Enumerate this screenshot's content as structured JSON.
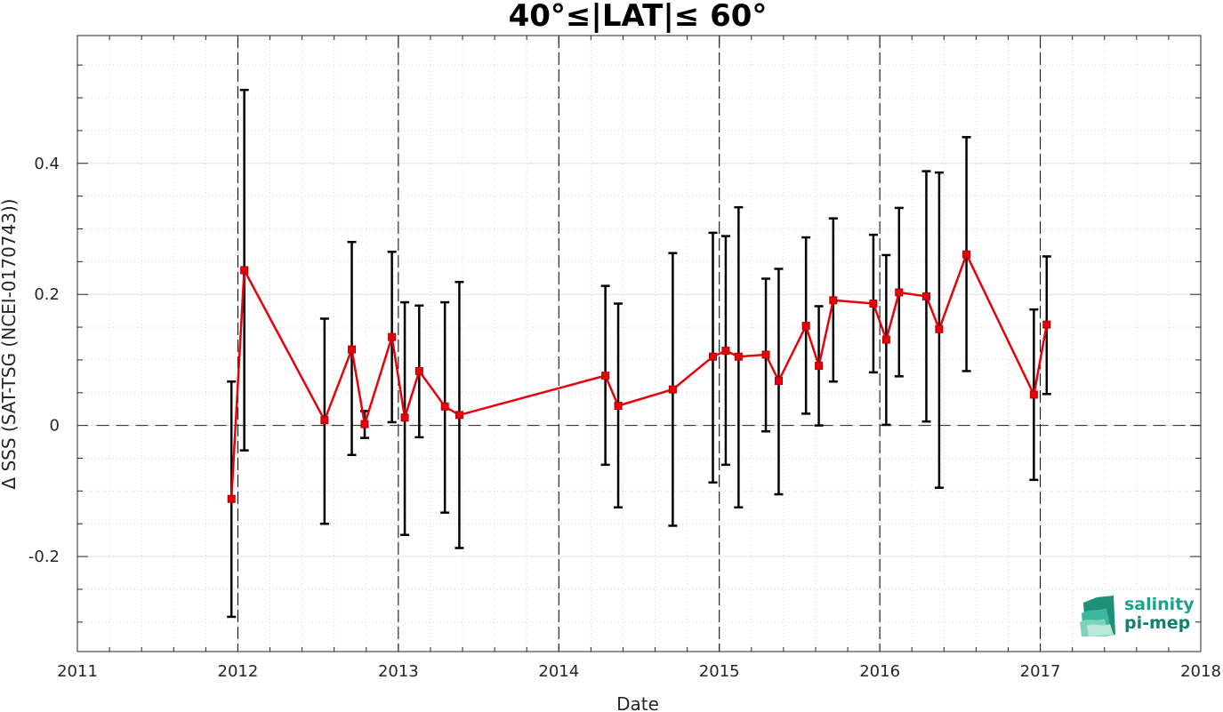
{
  "chart_data": {
    "type": "line",
    "title": "40°≤|LAT|≤ 60°",
    "xlabel": "Date",
    "ylabel": "Δ SSS (SAT-TSG (NCEI-0170743))",
    "xlim": [
      2011,
      2018
    ],
    "ylim": [
      -0.345,
      0.595
    ],
    "xticks": [
      2011,
      2012,
      2013,
      2014,
      2015,
      2016,
      2017,
      2018
    ],
    "yticks": [
      -0.2,
      0,
      0.2,
      0.4
    ],
    "ytick_labels": [
      "-0.2",
      "0",
      "0.2",
      "0.4"
    ],
    "grid": true,
    "year_lines": [
      2012,
      2013,
      2014,
      2015,
      2016,
      2017
    ],
    "zero_line": 0,
    "series": [
      {
        "color": "#e8000b",
        "points": [
          {
            "x": 2011.96,
            "y": -0.112,
            "lo": -0.292,
            "hi": 0.067
          },
          {
            "x": 2012.04,
            "y": 0.237,
            "lo": -0.038,
            "hi": 0.512
          },
          {
            "x": 2012.54,
            "y": 0.008,
            "lo": -0.15,
            "hi": 0.163
          },
          {
            "x": 2012.71,
            "y": 0.116,
            "lo": -0.045,
            "hi": 0.28
          },
          {
            "x": 2012.79,
            "y": 0.002,
            "lo": -0.019,
            "hi": 0.022
          },
          {
            "x": 2012.96,
            "y": 0.135,
            "lo": 0.005,
            "hi": 0.265
          },
          {
            "x": 2013.04,
            "y": 0.012,
            "lo": -0.167,
            "hi": 0.188
          },
          {
            "x": 2013.13,
            "y": 0.083,
            "lo": -0.018,
            "hi": 0.183
          },
          {
            "x": 2013.29,
            "y": 0.029,
            "lo": -0.133,
            "hi": 0.188
          },
          {
            "x": 2013.38,
            "y": 0.016,
            "lo": -0.187,
            "hi": 0.219
          },
          {
            "x": 2014.29,
            "y": 0.076,
            "lo": -0.06,
            "hi": 0.213
          },
          {
            "x": 2014.37,
            "y": 0.03,
            "lo": -0.125,
            "hi": 0.186
          },
          {
            "x": 2014.71,
            "y": 0.055,
            "lo": -0.153,
            "hi": 0.263
          },
          {
            "x": 2014.96,
            "y": 0.105,
            "lo": -0.087,
            "hi": 0.294
          },
          {
            "x": 2015.04,
            "y": 0.114,
            "lo": -0.06,
            "hi": 0.289
          },
          {
            "x": 2015.12,
            "y": 0.105,
            "lo": -0.125,
            "hi": 0.333
          },
          {
            "x": 2015.29,
            "y": 0.108,
            "lo": -0.009,
            "hi": 0.224
          },
          {
            "x": 2015.37,
            "y": 0.068,
            "lo": -0.105,
            "hi": 0.239
          },
          {
            "x": 2015.54,
            "y": 0.152,
            "lo": 0.018,
            "hi": 0.287
          },
          {
            "x": 2015.62,
            "y": 0.091,
            "lo": 0.0,
            "hi": 0.182
          },
          {
            "x": 2015.71,
            "y": 0.191,
            "lo": 0.067,
            "hi": 0.316
          },
          {
            "x": 2015.96,
            "y": 0.186,
            "lo": 0.081,
            "hi": 0.291
          },
          {
            "x": 2016.04,
            "y": 0.131,
            "lo": 0.001,
            "hi": 0.26
          },
          {
            "x": 2016.12,
            "y": 0.203,
            "lo": 0.075,
            "hi": 0.332
          },
          {
            "x": 2016.29,
            "y": 0.197,
            "lo": 0.006,
            "hi": 0.388
          },
          {
            "x": 2016.37,
            "y": 0.147,
            "lo": -0.095,
            "hi": 0.386
          },
          {
            "x": 2016.54,
            "y": 0.261,
            "lo": 0.083,
            "hi": 0.44
          },
          {
            "x": 2016.96,
            "y": 0.047,
            "lo": -0.083,
            "hi": 0.177
          },
          {
            "x": 2017.04,
            "y": 0.154,
            "lo": 0.048,
            "hi": 0.258
          }
        ]
      }
    ]
  },
  "logo": {
    "line1": "salinity",
    "line2": "pi-mep",
    "text_color": "#1aa38c",
    "text_color_dark": "#13806f"
  }
}
